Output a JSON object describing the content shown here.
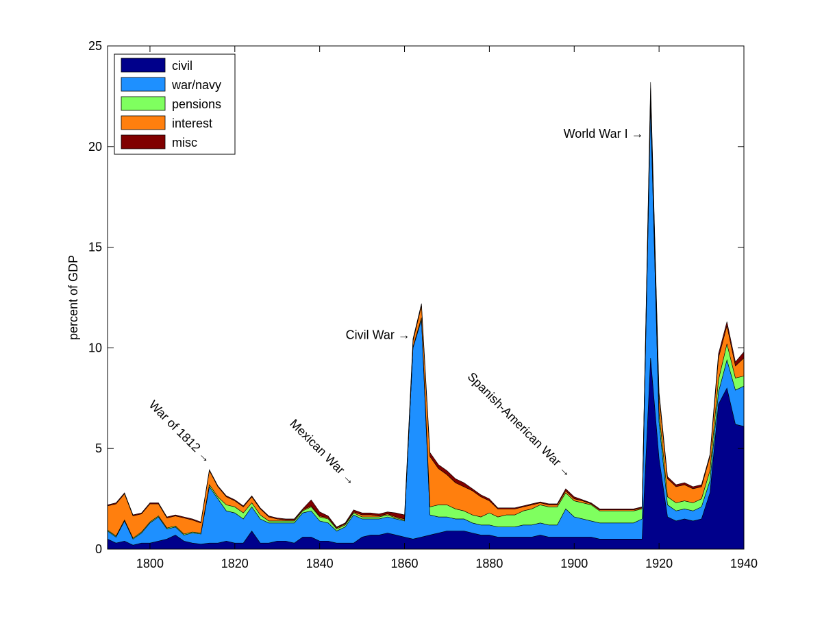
{
  "chart_data": {
    "type": "area",
    "stacked": true,
    "xlabel": "",
    "ylabel": "percent of GDP",
    "xlim": [
      1790,
      1940
    ],
    "ylim": [
      0,
      25
    ],
    "xticks": [
      1800,
      1820,
      1840,
      1860,
      1880,
      1900,
      1920,
      1940
    ],
    "yticks": [
      0,
      5,
      10,
      15,
      20,
      25
    ],
    "legend_position": "top-left",
    "x": [
      1790,
      1792,
      1794,
      1796,
      1798,
      1800,
      1802,
      1804,
      1806,
      1808,
      1810,
      1812,
      1814,
      1816,
      1818,
      1820,
      1822,
      1824,
      1826,
      1828,
      1830,
      1832,
      1834,
      1836,
      1838,
      1840,
      1842,
      1844,
      1846,
      1848,
      1850,
      1852,
      1854,
      1856,
      1858,
      1860,
      1862,
      1864,
      1866,
      1868,
      1870,
      1872,
      1874,
      1876,
      1878,
      1880,
      1882,
      1884,
      1886,
      1888,
      1890,
      1892,
      1894,
      1896,
      1898,
      1900,
      1902,
      1904,
      1906,
      1908,
      1910,
      1912,
      1914,
      1916,
      1918,
      1920,
      1922,
      1924,
      1926,
      1928,
      1930,
      1932,
      1934,
      1936,
      1938,
      1940
    ],
    "series": [
      {
        "name": "civil",
        "color": "#00008b",
        "values": [
          0.5,
          0.3,
          0.4,
          0.2,
          0.3,
          0.3,
          0.4,
          0.5,
          0.7,
          0.4,
          0.3,
          0.25,
          0.3,
          0.3,
          0.4,
          0.3,
          0.3,
          0.9,
          0.3,
          0.3,
          0.4,
          0.4,
          0.3,
          0.6,
          0.6,
          0.4,
          0.4,
          0.3,
          0.3,
          0.3,
          0.6,
          0.7,
          0.7,
          0.8,
          0.7,
          0.6,
          0.5,
          0.6,
          0.7,
          0.8,
          0.9,
          0.9,
          0.9,
          0.8,
          0.7,
          0.7,
          0.6,
          0.6,
          0.6,
          0.6,
          0.6,
          0.7,
          0.6,
          0.6,
          0.6,
          0.6,
          0.6,
          0.6,
          0.5,
          0.5,
          0.5,
          0.5,
          0.5,
          0.5,
          9.5,
          4.5,
          1.6,
          1.4,
          1.5,
          1.4,
          1.5,
          2.8,
          7.2,
          8.0,
          6.2,
          6.1
        ]
      },
      {
        "name": "war/navy",
        "color": "#1e90ff",
        "values": [
          0.4,
          0.3,
          1.0,
          0.3,
          0.5,
          1.0,
          1.2,
          0.5,
          0.4,
          0.3,
          0.5,
          0.5,
          2.8,
          2.2,
          1.5,
          1.5,
          1.2,
          1.2,
          1.2,
          1.0,
          0.9,
          0.9,
          1.0,
          1.2,
          1.3,
          1.0,
          0.9,
          0.6,
          0.8,
          1.4,
          0.9,
          0.8,
          0.8,
          0.8,
          0.8,
          0.8,
          9.5,
          10.8,
          1.0,
          0.8,
          0.7,
          0.6,
          0.6,
          0.5,
          0.5,
          0.5,
          0.5,
          0.5,
          0.5,
          0.6,
          0.6,
          0.6,
          0.6,
          0.6,
          1.4,
          1.0,
          0.9,
          0.8,
          0.8,
          0.8,
          0.8,
          0.8,
          0.8,
          1.0,
          12.5,
          1.8,
          0.6,
          0.5,
          0.5,
          0.5,
          0.6,
          0.6,
          0.6,
          1.4,
          1.7,
          2.0
        ]
      },
      {
        "name": "pensions",
        "color": "#7fff5f",
        "values": [
          0.05,
          0.05,
          0.05,
          0.05,
          0.05,
          0.05,
          0.05,
          0.05,
          0.05,
          0.05,
          0.05,
          0.05,
          0.1,
          0.1,
          0.3,
          0.3,
          0.3,
          0.2,
          0.2,
          0.1,
          0.1,
          0.1,
          0.1,
          0.1,
          0.2,
          0.2,
          0.2,
          0.1,
          0.1,
          0.1,
          0.1,
          0.1,
          0.1,
          0.1,
          0.05,
          0.05,
          0.05,
          0.1,
          0.4,
          0.6,
          0.6,
          0.5,
          0.4,
          0.4,
          0.4,
          0.6,
          0.5,
          0.6,
          0.6,
          0.7,
          0.8,
          0.9,
          0.9,
          0.9,
          0.8,
          0.8,
          0.8,
          0.8,
          0.6,
          0.6,
          0.6,
          0.6,
          0.6,
          0.5,
          0.4,
          0.5,
          0.4,
          0.4,
          0.4,
          0.4,
          0.4,
          0.5,
          0.6,
          0.8,
          0.6,
          0.5
        ]
      },
      {
        "name": "interest",
        "color": "#ff7f0e",
        "values": [
          1.2,
          1.6,
          1.3,
          1.1,
          0.9,
          0.9,
          0.6,
          0.5,
          0.5,
          0.8,
          0.6,
          0.5,
          0.7,
          0.5,
          0.4,
          0.3,
          0.3,
          0.3,
          0.3,
          0.2,
          0.1,
          0.05,
          0.05,
          0.05,
          0.05,
          0.05,
          0.05,
          0.05,
          0.05,
          0.05,
          0.1,
          0.1,
          0.05,
          0.05,
          0.05,
          0.05,
          0.3,
          0.6,
          2.5,
          1.8,
          1.5,
          1.3,
          1.2,
          1.2,
          1.0,
          0.6,
          0.4,
          0.3,
          0.3,
          0.2,
          0.2,
          0.1,
          0.1,
          0.1,
          0.1,
          0.1,
          0.1,
          0.05,
          0.05,
          0.05,
          0.05,
          0.05,
          0.05,
          0.05,
          0.5,
          0.8,
          0.9,
          0.8,
          0.8,
          0.7,
          0.6,
          0.7,
          1.1,
          0.9,
          0.6,
          0.9
        ]
      },
      {
        "name": "misc",
        "color": "#800000",
        "values": [
          0.05,
          0.05,
          0.05,
          0.05,
          0.05,
          0.05,
          0.05,
          0.05,
          0.05,
          0.05,
          0.05,
          0.05,
          0.05,
          0.05,
          0.05,
          0.05,
          0.05,
          0.05,
          0.05,
          0.05,
          0.05,
          0.05,
          0.05,
          0.05,
          0.3,
          0.2,
          0.1,
          0.05,
          0.05,
          0.1,
          0.1,
          0.1,
          0.1,
          0.1,
          0.2,
          0.2,
          0.1,
          0.1,
          0.2,
          0.2,
          0.2,
          0.2,
          0.2,
          0.1,
          0.1,
          0.1,
          0.05,
          0.05,
          0.05,
          0.05,
          0.05,
          0.05,
          0.05,
          0.05,
          0.1,
          0.1,
          0.05,
          0.05,
          0.05,
          0.05,
          0.05,
          0.05,
          0.05,
          0.05,
          0.3,
          0.2,
          0.1,
          0.1,
          0.1,
          0.1,
          0.1,
          0.1,
          0.2,
          0.2,
          0.2,
          0.3
        ]
      }
    ],
    "annotations": [
      {
        "text": "War of 1812 →",
        "x": 1814,
        "y": 4.1,
        "angle": 45
      },
      {
        "text": "Mexican War →",
        "x": 1848,
        "y": 3.0,
        "angle": 45
      },
      {
        "text": "Civil War →",
        "x": 1862,
        "y": 10.3,
        "angle": 0
      },
      {
        "text": "Spanish-American War →",
        "x": 1899,
        "y": 3.4,
        "angle": 45
      },
      {
        "text": "World War I →",
        "x": 1917,
        "y": 20.3,
        "angle": 0
      }
    ]
  }
}
